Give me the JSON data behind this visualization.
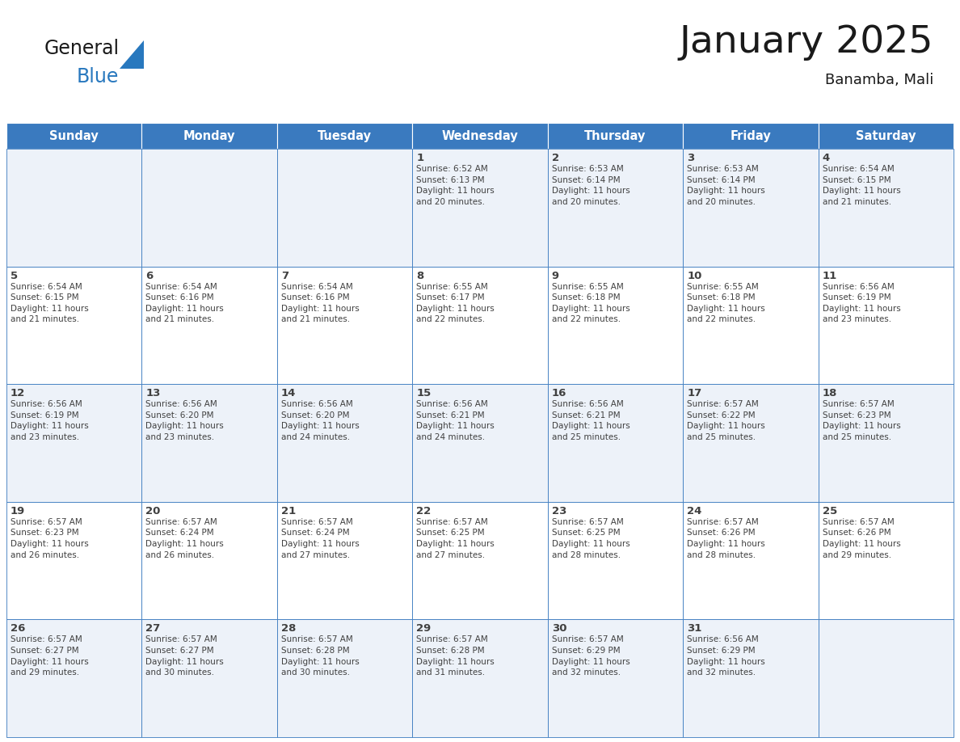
{
  "title": "January 2025",
  "subtitle": "Banamba, Mali",
  "header_bg": "#3a7abf",
  "header_text": "#ffffff",
  "cell_bg_odd": "#edf2f9",
  "cell_bg_even": "#ffffff",
  "border_color": "#3a7abf",
  "text_color": "#404040",
  "days_of_week": [
    "Sunday",
    "Monday",
    "Tuesday",
    "Wednesday",
    "Thursday",
    "Friday",
    "Saturday"
  ],
  "calendar_data": [
    [
      {
        "day": "",
        "info": ""
      },
      {
        "day": "",
        "info": ""
      },
      {
        "day": "",
        "info": ""
      },
      {
        "day": "1",
        "info": "Sunrise: 6:52 AM\nSunset: 6:13 PM\nDaylight: 11 hours\nand 20 minutes."
      },
      {
        "day": "2",
        "info": "Sunrise: 6:53 AM\nSunset: 6:14 PM\nDaylight: 11 hours\nand 20 minutes."
      },
      {
        "day": "3",
        "info": "Sunrise: 6:53 AM\nSunset: 6:14 PM\nDaylight: 11 hours\nand 20 minutes."
      },
      {
        "day": "4",
        "info": "Sunrise: 6:54 AM\nSunset: 6:15 PM\nDaylight: 11 hours\nand 21 minutes."
      }
    ],
    [
      {
        "day": "5",
        "info": "Sunrise: 6:54 AM\nSunset: 6:15 PM\nDaylight: 11 hours\nand 21 minutes."
      },
      {
        "day": "6",
        "info": "Sunrise: 6:54 AM\nSunset: 6:16 PM\nDaylight: 11 hours\nand 21 minutes."
      },
      {
        "day": "7",
        "info": "Sunrise: 6:54 AM\nSunset: 6:16 PM\nDaylight: 11 hours\nand 21 minutes."
      },
      {
        "day": "8",
        "info": "Sunrise: 6:55 AM\nSunset: 6:17 PM\nDaylight: 11 hours\nand 22 minutes."
      },
      {
        "day": "9",
        "info": "Sunrise: 6:55 AM\nSunset: 6:18 PM\nDaylight: 11 hours\nand 22 minutes."
      },
      {
        "day": "10",
        "info": "Sunrise: 6:55 AM\nSunset: 6:18 PM\nDaylight: 11 hours\nand 22 minutes."
      },
      {
        "day": "11",
        "info": "Sunrise: 6:56 AM\nSunset: 6:19 PM\nDaylight: 11 hours\nand 23 minutes."
      }
    ],
    [
      {
        "day": "12",
        "info": "Sunrise: 6:56 AM\nSunset: 6:19 PM\nDaylight: 11 hours\nand 23 minutes."
      },
      {
        "day": "13",
        "info": "Sunrise: 6:56 AM\nSunset: 6:20 PM\nDaylight: 11 hours\nand 23 minutes."
      },
      {
        "day": "14",
        "info": "Sunrise: 6:56 AM\nSunset: 6:20 PM\nDaylight: 11 hours\nand 24 minutes."
      },
      {
        "day": "15",
        "info": "Sunrise: 6:56 AM\nSunset: 6:21 PM\nDaylight: 11 hours\nand 24 minutes."
      },
      {
        "day": "16",
        "info": "Sunrise: 6:56 AM\nSunset: 6:21 PM\nDaylight: 11 hours\nand 25 minutes."
      },
      {
        "day": "17",
        "info": "Sunrise: 6:57 AM\nSunset: 6:22 PM\nDaylight: 11 hours\nand 25 minutes."
      },
      {
        "day": "18",
        "info": "Sunrise: 6:57 AM\nSunset: 6:23 PM\nDaylight: 11 hours\nand 25 minutes."
      }
    ],
    [
      {
        "day": "19",
        "info": "Sunrise: 6:57 AM\nSunset: 6:23 PM\nDaylight: 11 hours\nand 26 minutes."
      },
      {
        "day": "20",
        "info": "Sunrise: 6:57 AM\nSunset: 6:24 PM\nDaylight: 11 hours\nand 26 minutes."
      },
      {
        "day": "21",
        "info": "Sunrise: 6:57 AM\nSunset: 6:24 PM\nDaylight: 11 hours\nand 27 minutes."
      },
      {
        "day": "22",
        "info": "Sunrise: 6:57 AM\nSunset: 6:25 PM\nDaylight: 11 hours\nand 27 minutes."
      },
      {
        "day": "23",
        "info": "Sunrise: 6:57 AM\nSunset: 6:25 PM\nDaylight: 11 hours\nand 28 minutes."
      },
      {
        "day": "24",
        "info": "Sunrise: 6:57 AM\nSunset: 6:26 PM\nDaylight: 11 hours\nand 28 minutes."
      },
      {
        "day": "25",
        "info": "Sunrise: 6:57 AM\nSunset: 6:26 PM\nDaylight: 11 hours\nand 29 minutes."
      }
    ],
    [
      {
        "day": "26",
        "info": "Sunrise: 6:57 AM\nSunset: 6:27 PM\nDaylight: 11 hours\nand 29 minutes."
      },
      {
        "day": "27",
        "info": "Sunrise: 6:57 AM\nSunset: 6:27 PM\nDaylight: 11 hours\nand 30 minutes."
      },
      {
        "day": "28",
        "info": "Sunrise: 6:57 AM\nSunset: 6:28 PM\nDaylight: 11 hours\nand 30 minutes."
      },
      {
        "day": "29",
        "info": "Sunrise: 6:57 AM\nSunset: 6:28 PM\nDaylight: 11 hours\nand 31 minutes."
      },
      {
        "day": "30",
        "info": "Sunrise: 6:57 AM\nSunset: 6:29 PM\nDaylight: 11 hours\nand 32 minutes."
      },
      {
        "day": "31",
        "info": "Sunrise: 6:56 AM\nSunset: 6:29 PM\nDaylight: 11 hours\nand 32 minutes."
      },
      {
        "day": "",
        "info": ""
      }
    ]
  ],
  "logo_general_color": "#1a1a1a",
  "logo_blue_color": "#2878be",
  "logo_triangle_color": "#2878be",
  "fig_width": 11.88,
  "fig_height": 9.18,
  "dpi": 100
}
